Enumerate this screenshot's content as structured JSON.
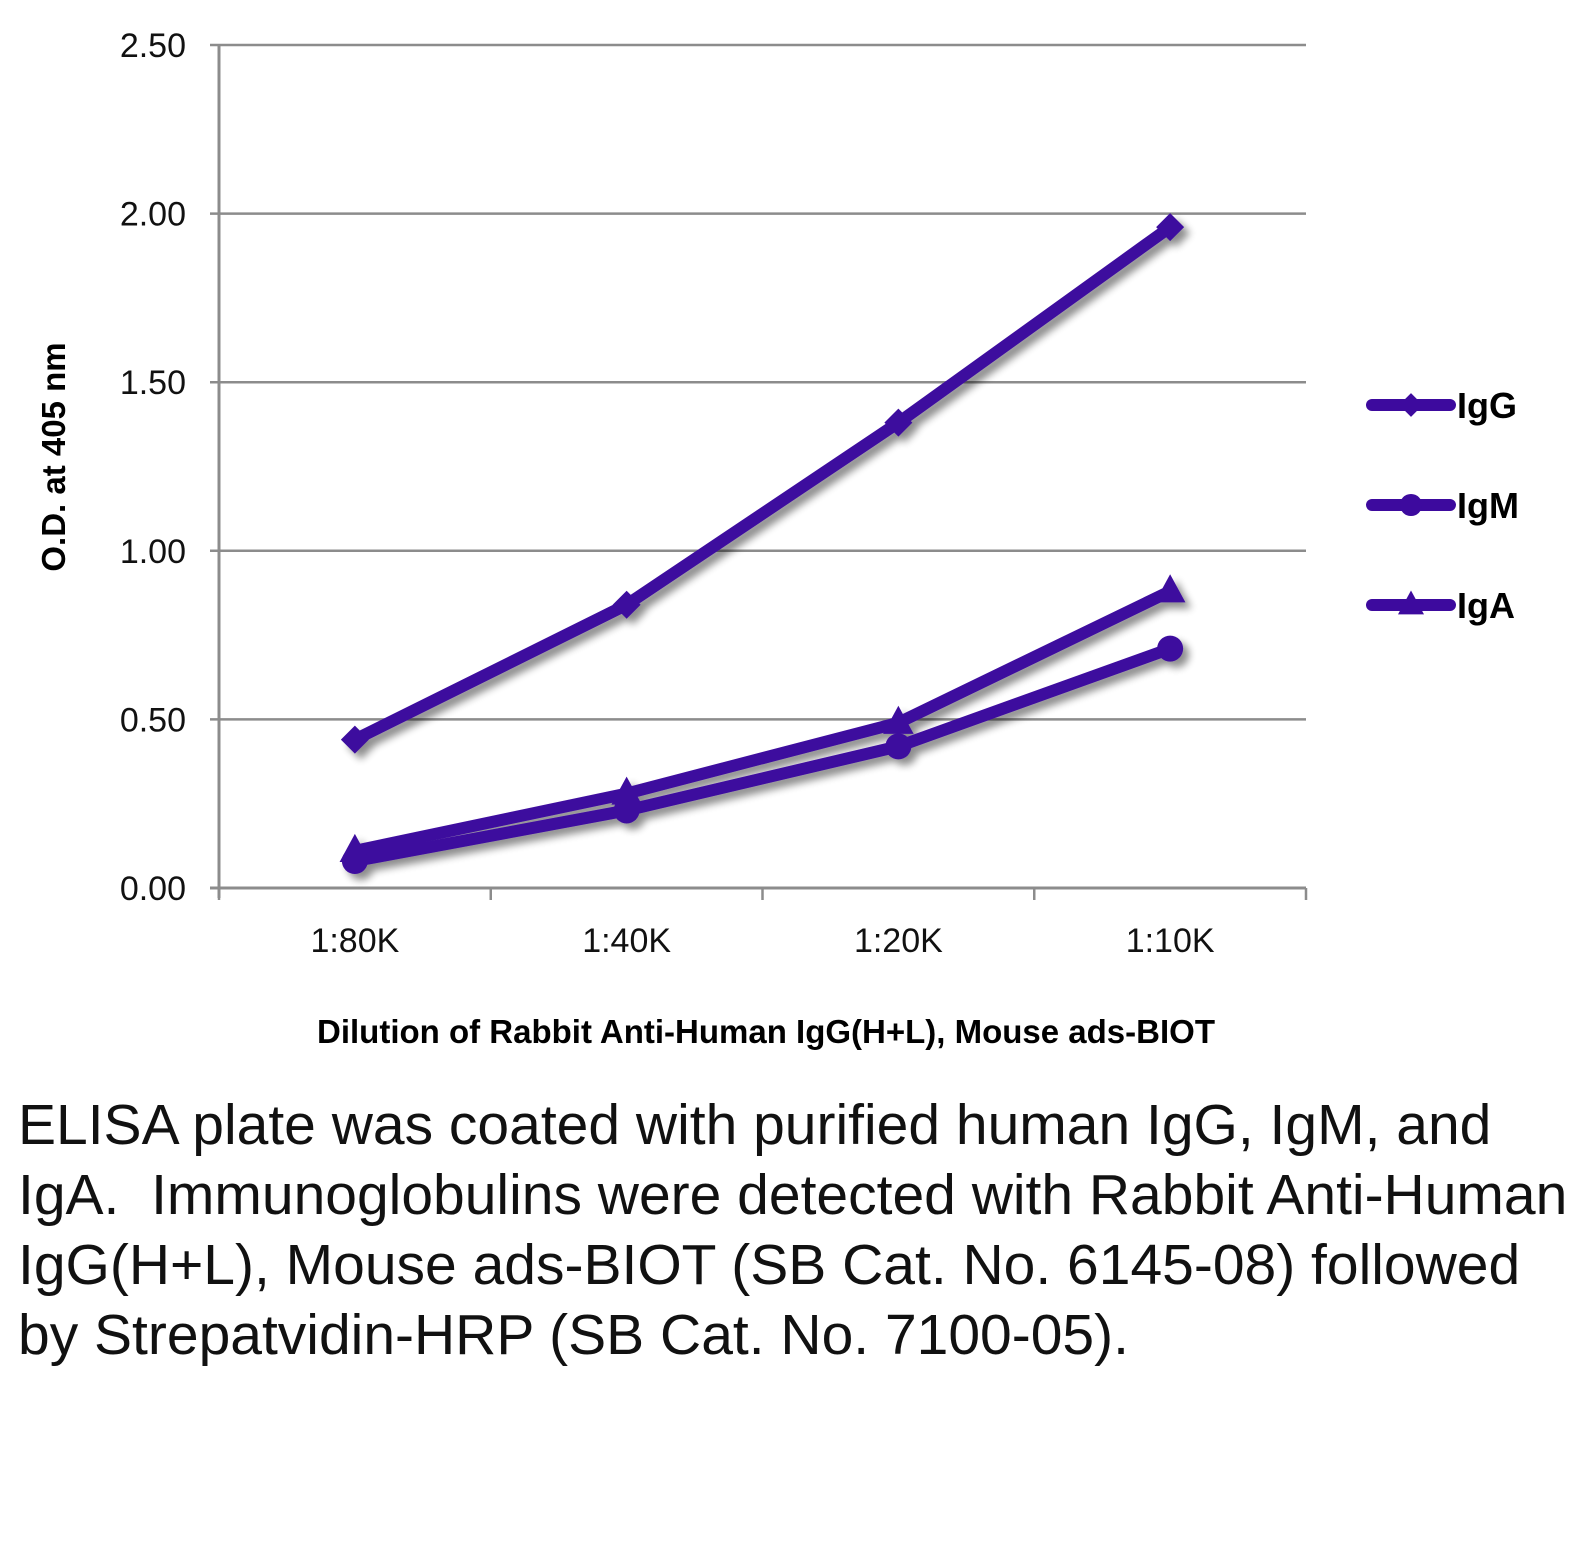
{
  "chart_data": {
    "type": "line",
    "title": "",
    "xlabel": "Dilution of Rabbit Anti-Human IgG(H+L), Mouse ads-BIOT",
    "ylabel": "O.D. at 405 nm",
    "categories": [
      "1:80K",
      "1:40K",
      "1:20K",
      "1:10K"
    ],
    "ylim": [
      0,
      2.5
    ],
    "yticks": [
      "0.00",
      "0.50",
      "1.00",
      "1.50",
      "2.00",
      "2.50"
    ],
    "ytick_values": [
      0,
      0.5,
      1.0,
      1.5,
      2.0,
      2.5
    ],
    "grid": true,
    "legend_position": "right",
    "series": [
      {
        "name": "IgG",
        "marker": "diamond",
        "color": "#3d0a9e",
        "values": [
          0.44,
          0.84,
          1.38,
          1.96
        ]
      },
      {
        "name": "IgM",
        "marker": "circle",
        "color": "#3d0a9e",
        "values": [
          0.08,
          0.23,
          0.42,
          0.71
        ]
      },
      {
        "name": "IgA",
        "marker": "triangle",
        "color": "#3d0a9e",
        "values": [
          0.11,
          0.28,
          0.49,
          0.88
        ]
      }
    ]
  },
  "caption": "ELISA plate was coated with purified human IgG, IgM, and IgA.  Immunoglobulins were detected with Rabbit Anti-Human IgG(H+L), Mouse ads-BIOT (SB Cat. No. 6145-08) followed by Strepatvidin-HRP (SB Cat. No. 7100-05)."
}
